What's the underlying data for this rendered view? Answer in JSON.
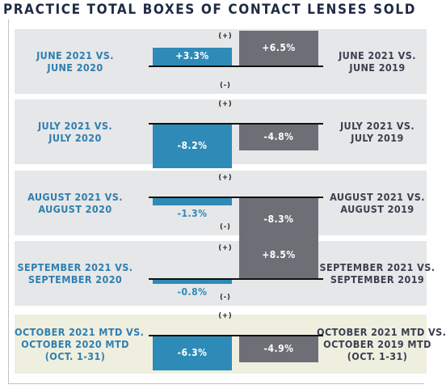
{
  "title": "PRACTICE TOTAL BOXES OF CONTACT LENSES SOLD",
  "plus_label": "(+)",
  "minus_label": "(-)",
  "colors": {
    "series1": "#2e8bb8",
    "series2": "#6e6f76",
    "panel": "#e6e7e8",
    "panel_highlight": "#efefe0"
  },
  "chart_data": {
    "type": "bar",
    "title": "PRACTICE TOTAL BOXES OF CONTACT LENSES SOLD",
    "unit": "%",
    "groups": [
      {
        "left_label": [
          "JUNE 2021 VS.",
          "JUNE 2020"
        ],
        "right_label": [
          "JUNE 2021 VS.",
          "JUNE 2019"
        ],
        "values": [
          3.3,
          6.5
        ],
        "value_labels": [
          "+3.3%",
          "+6.5%"
        ]
      },
      {
        "left_label": [
          "JULY 2021 VS.",
          "JULY 2020"
        ],
        "right_label": [
          "JULY 2021 VS.",
          "JULY 2019"
        ],
        "values": [
          -8.2,
          -4.8
        ],
        "value_labels": [
          "-8.2%",
          "-4.8%"
        ]
      },
      {
        "left_label": [
          "AUGUST 2021 VS.",
          "AUGUST 2020"
        ],
        "right_label": [
          "AUGUST 2021 VS.",
          "AUGUST 2019"
        ],
        "values": [
          -1.3,
          -8.3
        ],
        "value_labels": [
          "-1.3%",
          "-8.3%"
        ]
      },
      {
        "left_label": [
          "SEPTEMBER 2021 VS.",
          "SEPTEMBER 2020"
        ],
        "right_label": [
          "SEPTEMBER 2021 VS.",
          "SEPTEMBER 2019"
        ],
        "values": [
          -0.8,
          8.5
        ],
        "value_labels": [
          "-0.8%",
          "+8.5%"
        ]
      },
      {
        "left_label": [
          "OCTOBER 2021 MTD VS.",
          "OCTOBER 2020 MTD",
          "(OCT. 1-31)"
        ],
        "right_label": [
          "OCTOBER 2021 MTD VS.",
          "OCTOBER 2019 MTD",
          "(OCT. 1-31)"
        ],
        "values": [
          -6.3,
          -4.9
        ],
        "value_labels": [
          "-6.3%",
          "-4.9%"
        ]
      }
    ]
  }
}
